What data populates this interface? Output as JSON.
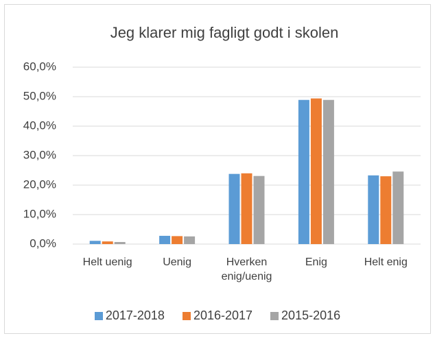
{
  "chart_data": {
    "type": "bar",
    "title": "Jeg klarer mig fagligt godt i skolen",
    "categories": [
      "Helt uenig",
      "Uenig",
      "Hverken enig/uenig",
      "Enig",
      "Helt enig"
    ],
    "series": [
      {
        "name": "2017-2018",
        "color": "#5b9bd5",
        "values": [
          1.1,
          2.8,
          23.8,
          48.9,
          23.3
        ]
      },
      {
        "name": "2016-2017",
        "color": "#ed7d31",
        "values": [
          0.9,
          2.7,
          24.0,
          49.4,
          23.0
        ]
      },
      {
        "name": "2015-2016",
        "color": "#a5a5a5",
        "values": [
          0.7,
          2.6,
          23.1,
          48.9,
          24.6
        ]
      }
    ],
    "ylim": [
      0,
      60
    ],
    "yticks": [
      {
        "value": 0,
        "label": "0,0%"
      },
      {
        "value": 10,
        "label": "10,0%"
      },
      {
        "value": 20,
        "label": "20,0%"
      },
      {
        "value": 30,
        "label": "30,0%"
      },
      {
        "value": 40,
        "label": "40,0%"
      },
      {
        "value": 50,
        "label": "50,0%"
      },
      {
        "value": 60,
        "label": "60,0%"
      }
    ],
    "grid": true,
    "legend": "bottom"
  }
}
